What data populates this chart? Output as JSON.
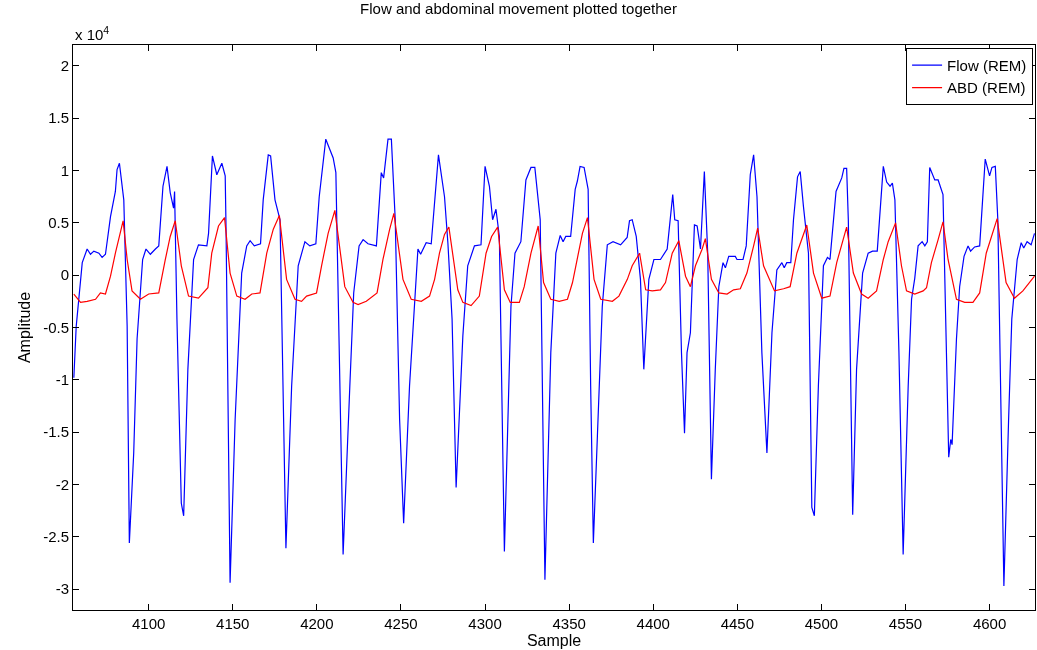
{
  "chart_data": {
    "type": "line",
    "title": "Flow and abdominal movement plotted together",
    "xlabel": "Sample",
    "ylabel": "Amplitude",
    "annotations": [
      "x 10$^{4}$"
    ],
    "xlim": [
      4055,
      4627
    ],
    "xticks": [
      4100,
      4150,
      4200,
      4250,
      4300,
      4350,
      4400,
      4450,
      4500,
      4550,
      4600
    ],
    "ylim": [
      -3.2,
      2.2
    ],
    "yticks": [
      -3,
      -2.5,
      -2,
      -1.5,
      -1,
      -0.5,
      0,
      0.5,
      1,
      1.5,
      2
    ],
    "grid": false,
    "legend": "top right",
    "marker": "none",
    "line_style": "solid",
    "series": [
      {
        "name": "Flow (REM)",
        "color": "#0000ff",
        "x": [
          4055.5,
          4056.9,
          4060.5,
          4063.4,
          4065.4,
          4067.4,
          4070.4,
          4072.3,
          4074.3,
          4077.3,
          4080.2,
          4081.2,
          4082.6,
          4085.2,
          4087.2,
          4088.5,
          4091.1,
          4093.1,
          4096.4,
          4098.4,
          4101,
          4104,
          4106,
          4108.5,
          4110.9,
          4112.8,
          4114.8,
          4115.4,
          4116.8,
          4119.4,
          4120.8,
          4123.3,
          4126.7,
          4129.6,
          4134.6,
          4135.6,
          4137.9,
          4140.5,
          4143.5,
          4145.5,
          4146.0,
          4148.4,
          4151.4,
          4155.3,
          4158.3,
          4160.3,
          4162.8,
          4166.5,
          4168.1,
          4171.1,
          4172.5,
          4175.1,
          4178.1,
          4181.6,
          4185.0,
          4188.9,
          4192.9,
          4195.8,
          4199.4,
          4201.4,
          4205.3,
          4209.7,
          4211.3,
          4215.6,
          4219.6,
          4221.9,
          4225.1,
          4227.5,
          4230.4,
          4235.4,
          4238.3,
          4239.7,
          4242.3,
          4244.3,
          4246.6,
          4249.2,
          4251.6,
          4255.1,
          4260.1,
          4261.7,
          4265.0,
          4268.0,
          4272.3,
          4275.9,
          4277.9,
          4280.4,
          4282.8,
          4286.8,
          4289.7,
          4293.7,
          4297.6,
          4300.0,
          4302.6,
          4304.5,
          4306.5,
          4308.5,
          4311.5,
          4315.4,
          4317.8,
          4321.3,
          4324.3,
          4327.3,
          4329.6,
          4332.8,
          4335.6,
          4339.1,
          4342.1,
          4344.7,
          4346.4,
          4348.0,
          4350.9,
          4353.6,
          4354.9,
          4356.5,
          4358.9,
          4361.3,
          4362.8,
          4364.4,
          4366.8,
          4369.7,
          4372.7,
          4376.1,
          4380.6,
          4384.5,
          4385.9,
          4387.5,
          4389.9,
          4392.4,
          4394.4,
          4397.4,
          4400.4,
          4404.3,
          4408.3,
          4411.6,
          4412.8,
          4414.8,
          4416.8,
          4418.6,
          4420.1,
          4422.1,
          4424.5,
          4426.1,
          4428.1,
          4430.4,
          4432.4,
          4434.6,
          4436.9,
          4439.0,
          4441.5,
          4442.9,
          4444.9,
          4448.8,
          4449.8,
          4453.4,
          4455.3,
          4457.7,
          4459.7,
          4461.7,
          4464.6,
          4467.6,
          4470.6,
          4473.5,
          4476.5,
          4477.9,
          4479.4,
          4481.8,
          4483.4,
          4485.8,
          4487.4,
          4489.3,
          4492.3,
          4494.3,
          4495.8,
          4498.2,
          4501.2,
          4503.6,
          4505.1,
          4508.7,
          4512.1,
          4513.4,
          4515.0,
          4516.0,
          4518.6,
          4520.9,
          4524.5,
          4527.8,
          4530.4,
          4533.2,
          4536.8,
          4538.8,
          4540.8,
          4542.2,
          4543.7,
          4546.1,
          4548.6,
          4551.6,
          4553.6,
          4555.5,
          4557.5,
          4559.9,
          4561.5,
          4563.0,
          4564.4,
          4567.4,
          4569.4,
          4572.3,
          4573.9,
          4575.7,
          4576.9,
          4577.7,
          4580.3,
          4582.2,
          4584.8,
          4587.2,
          4588.7,
          4591.1,
          4594.1,
          4597.4,
          4600.0,
          4601.4,
          4603.4,
          4604.9,
          4608.5,
          4611.3,
          4613.2,
          4616.4,
          4618.8,
          4620.3,
          4622.3,
          4624.7,
          4626.7
        ],
        "values": [
          -0.98,
          -0.49,
          0.12,
          0.25,
          0.2,
          0.23,
          0.21,
          0.17,
          0.2,
          0.56,
          0.8,
          1.01,
          1.07,
          0.72,
          -0.49,
          -2.56,
          -1.7,
          -0.61,
          0.15,
          0.25,
          0.2,
          0.25,
          0.28,
          0.85,
          1.04,
          0.79,
          0.64,
          0.8,
          -0.42,
          -2.18,
          -2.3,
          -0.9,
          0.15,
          0.29,
          0.28,
          0.4,
          1.14,
          0.96,
          1.07,
          0.95,
          0.44,
          -2.94,
          -1.38,
          0.02,
          0.28,
          0.33,
          0.28,
          0.3,
          0.72,
          1.15,
          1.14,
          0.72,
          0.53,
          -2.61,
          -1.06,
          0.09,
          0.32,
          0.28,
          0.3,
          0.75,
          1.3,
          1.12,
          0.98,
          -2.67,
          -1.06,
          -0.17,
          0.28,
          0.34,
          0.3,
          0.28,
          0.98,
          0.93,
          1.3,
          1.3,
          0.53,
          -1.38,
          -2.37,
          -1.06,
          0.25,
          0.2,
          0.31,
          0.3,
          1.15,
          0.75,
          0.31,
          -0.42,
          -2.03,
          -0.58,
          0.09,
          0.28,
          0.29,
          1.04,
          0.85,
          0.53,
          0.63,
          0.37,
          -2.64,
          -0.3,
          0.21,
          0.32,
          0.91,
          1.03,
          1.03,
          0.53,
          -2.91,
          -0.74,
          0.21,
          0.38,
          0.32,
          0.37,
          0.37,
          0.82,
          0.9,
          1.04,
          1.03,
          0.82,
          -1.06,
          -2.56,
          -1.54,
          -0.3,
          0.29,
          0.32,
          0.29,
          0.36,
          0.52,
          0.53,
          0.37,
          -0.04,
          -0.9,
          -0.04,
          0.15,
          0.15,
          0.25,
          0.77,
          0.53,
          0.52,
          -0.74,
          -1.51,
          -0.74,
          -0.55,
          0.48,
          0.47,
          0.25,
          0.99,
          0.21,
          -1.95,
          -0.9,
          -0.11,
          0.12,
          0.07,
          0.18,
          0.18,
          0.15,
          0.15,
          0.28,
          0.96,
          1.15,
          0.75,
          -0.74,
          -1.7,
          -0.55,
          0.05,
          0.12,
          0.07,
          0.12,
          0.12,
          0.53,
          0.94,
          0.99,
          0.66,
          0.21,
          -2.22,
          -2.3,
          -1.06,
          0.09,
          0.17,
          0.15,
          0.8,
          0.93,
          1.02,
          1.02,
          0.53,
          -2.29,
          -0.9,
          0.02,
          0.21,
          0.23,
          0.23,
          1.04,
          0.89,
          0.85,
          0.88,
          0.72,
          -0.74,
          -2.67,
          -1.06,
          -0.23,
          -0.03,
          0.28,
          0.32,
          0.28,
          0.32,
          1.03,
          0.91,
          0.91,
          0.77,
          -0.42,
          -1.74,
          -1.57,
          -1.62,
          -0.61,
          -0.11,
          0.18,
          0.28,
          0.23,
          0.27,
          0.28,
          1.11,
          0.95,
          1.03,
          1.04,
          0.53,
          -2.97,
          -1.38,
          -0.42,
          0.15,
          0.31,
          0.26,
          0.32,
          0.29,
          0.4
        ]
      },
      {
        "name": "ABD (REM)",
        "color": "#ff0000",
        "x": [
          4055.5,
          4059.5,
          4063.4,
          4068.4,
          4071.3,
          4074.3,
          4077.3,
          4080.2,
          4084.8,
          4087.2,
          4090.1,
          4095.1,
          4100,
          4106,
          4109.9,
          4112.8,
          4115.8,
          4119.4,
          4123.7,
          4129.6,
          4135.2,
          4137.5,
          4141.5,
          4145.1,
          4148.4,
          4152.4,
          4157.3,
          4161.3,
          4166.2,
          4170.2,
          4174.1,
          4177.7,
          4182.0,
          4187.0,
          4190.9,
          4193.9,
          4199.8,
          4202.8,
          4206.7,
          4210.7,
          4216.6,
          4221.5,
          4224.5,
          4229.4,
          4235.8,
          4239.3,
          4243.3,
          4245.8,
          4251.2,
          4256.1,
          4262.1,
          4267.0,
          4270.0,
          4272.9,
          4275.9,
          4278.5,
          4283.8,
          4286.8,
          4291.7,
          4296.6,
          4300.6,
          4303.9,
          4307.5,
          4311.5,
          4315.0,
          4320.4,
          4323.3,
          4327.3,
          4331.6,
          4334.8,
          4339.1,
          4344.1,
          4349.0,
          4352.0,
          4354.0,
          4357.9,
          4360.9,
          4364.8,
          4368.8,
          4375.7,
          4379.6,
          4384.6,
          4387.5,
          4391.9,
          4395.5,
          4399.4,
          4404.3,
          4407.3,
          4411.3,
          4415.2,
          4419.2,
          4422.1,
          4425.1,
          4429.1,
          4431.0,
          4434.6,
          4439.0,
          4443.9,
          4447.8,
          4451.8,
          4455.7,
          4459.7,
          4462.1,
          4465.6,
          4472.1,
          4477.5,
          4481.4,
          4485.4,
          4491.3,
          4495.3,
          4500.2,
          4505.1,
          4509.1,
          4515.0,
          4519.0,
          4523.9,
          4527.8,
          4532.8,
          4536.8,
          4539.7,
          4544.1,
          4547.6,
          4550.6,
          4555.5,
          4560.5,
          4562.5,
          4565.4,
          4569.4,
          4572.3,
          4575.3,
          4580.3,
          4585.2,
          4590.1,
          4594.1,
          4598.0,
          4604.5,
          4609.8,
          4614.8,
          4619.8,
          4626.7
        ],
        "values": [
          -0.18,
          -0.26,
          -0.25,
          -0.23,
          -0.17,
          -0.18,
          -0.01,
          0.21,
          0.52,
          0.15,
          -0.15,
          -0.23,
          -0.18,
          -0.17,
          0.15,
          0.37,
          0.52,
          0.09,
          -0.2,
          -0.22,
          -0.12,
          0.21,
          0.47,
          0.55,
          0.02,
          -0.2,
          -0.23,
          -0.18,
          -0.17,
          0.21,
          0.44,
          0.57,
          -0.04,
          -0.23,
          -0.25,
          -0.2,
          -0.17,
          0.09,
          0.4,
          0.62,
          -0.11,
          -0.26,
          -0.28,
          -0.25,
          -0.17,
          0.15,
          0.44,
          0.59,
          -0.04,
          -0.23,
          -0.25,
          -0.2,
          -0.04,
          0.21,
          0.39,
          0.46,
          -0.14,
          -0.26,
          -0.29,
          -0.2,
          0.21,
          0.37,
          0.46,
          -0.14,
          -0.26,
          -0.26,
          -0.11,
          0.21,
          0.47,
          -0.07,
          -0.23,
          -0.25,
          -0.23,
          -0.07,
          0.09,
          0.4,
          0.55,
          -0.04,
          -0.23,
          -0.25,
          -0.2,
          -0.04,
          0.09,
          0.21,
          -0.14,
          -0.15,
          -0.14,
          -0.07,
          0.21,
          0.33,
          -0.01,
          -0.11,
          0.09,
          0.25,
          0.35,
          -0.04,
          -0.17,
          -0.18,
          -0.14,
          -0.13,
          0.02,
          0.28,
          0.45,
          0.09,
          -0.15,
          -0.13,
          -0.11,
          0.21,
          0.48,
          0.02,
          -0.22,
          -0.2,
          0.12,
          0.46,
          0.02,
          -0.18,
          -0.22,
          -0.15,
          0.15,
          0.32,
          0.5,
          0.09,
          -0.15,
          -0.18,
          -0.15,
          -0.12,
          0.12,
          0.34,
          0.51,
          0.15,
          -0.23,
          -0.26,
          -0.26,
          -0.17,
          0.21,
          0.54,
          -0.07,
          -0.22,
          -0.15,
          -0.01
        ]
      }
    ]
  }
}
